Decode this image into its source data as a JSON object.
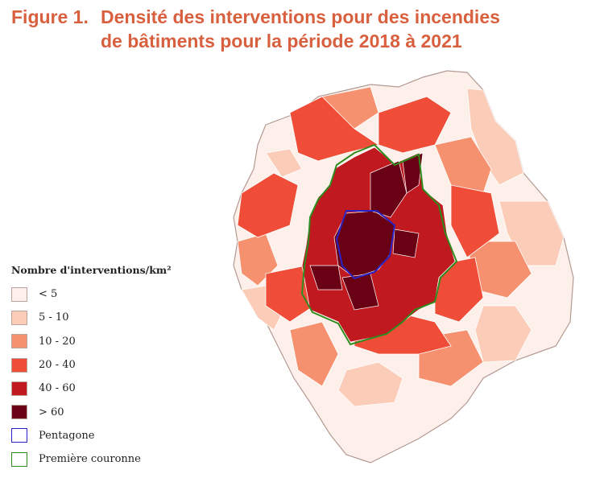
{
  "title": {
    "label": "Figure 1.",
    "line1": "Densité des interventions pour des incendies",
    "line2": "de bâtiments pour la période 2018 à 2021"
  },
  "legend": {
    "title": "Nombre d'interventions/km²",
    "classes": [
      {
        "label": "< 5",
        "color": "#fdf0ea"
      },
      {
        "label": "5 - 10",
        "color": "#fbcdb9"
      },
      {
        "label": "10 - 20",
        "color": "#f69170"
      },
      {
        "label": "20 - 40",
        "color": "#ef4d37"
      },
      {
        "label": "40 - 60",
        "color": "#c01920"
      },
      {
        "label": ">  60",
        "color": "#6a0014"
      }
    ],
    "boundaries": [
      {
        "label": "Pentagone",
        "color": "#2a22c4"
      },
      {
        "label": "Première couronne",
        "color": "#2e8b1e"
      }
    ]
  }
}
